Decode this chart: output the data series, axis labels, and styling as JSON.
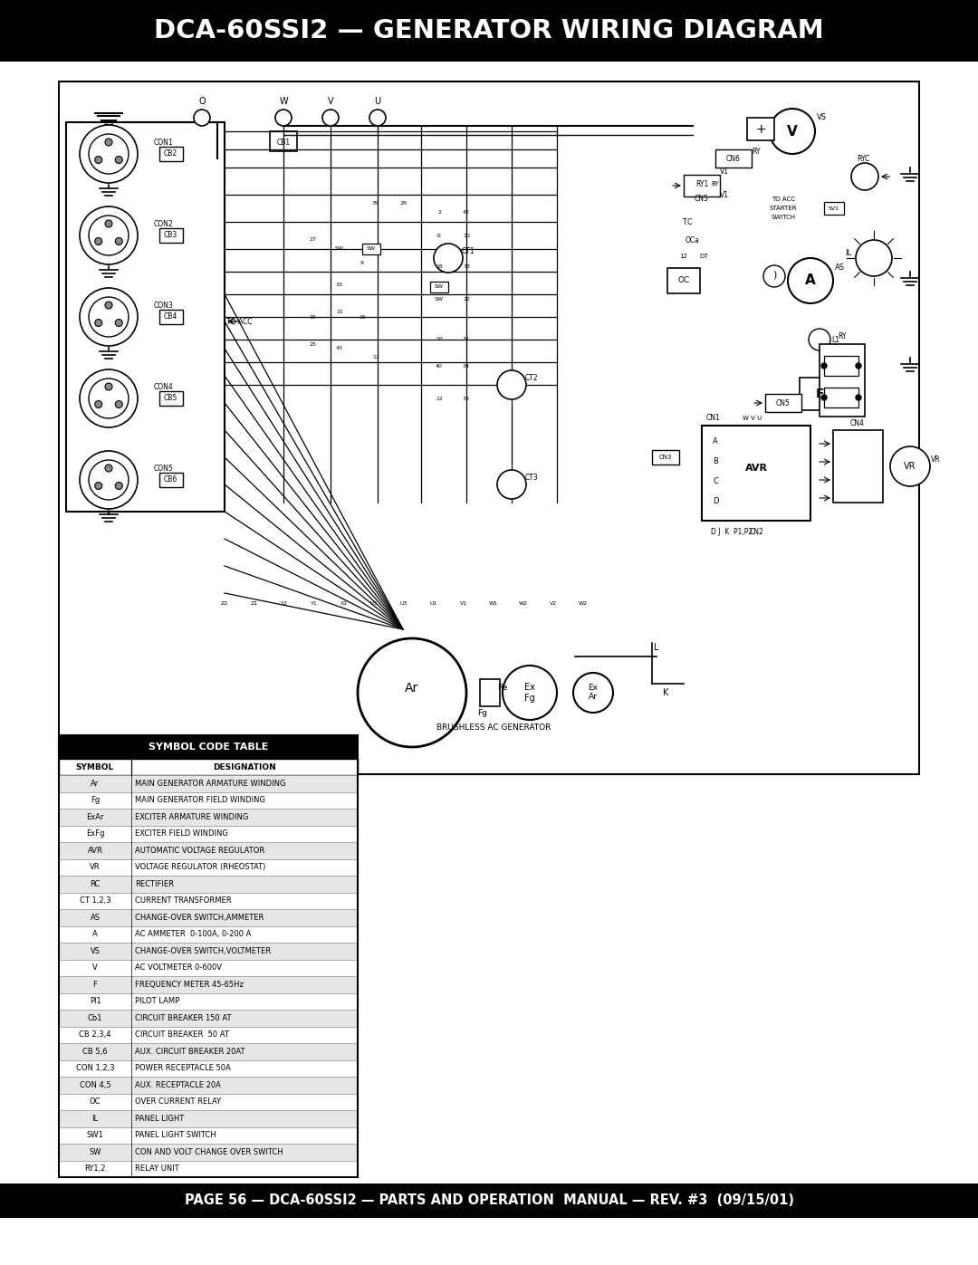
{
  "title": "DCA-60SSI2 — GENERATOR WIRING DIAGRAM",
  "footer": "PAGE 56 — DCA-60SSI2 — PARTS AND OPERATION  MANUAL — REV. #3  (09/15/01)",
  "header_bg": "#000000",
  "header_text_color": "#ffffff",
  "footer_bg": "#000000",
  "footer_text_color": "#ffffff",
  "page_bg": "#ffffff",
  "diagram_label": "BRUSHLESS AC GENERATOR",
  "table_title": "SYMBOL CODE TABLE",
  "table_header_bg": "#000000",
  "table_header_text": "#ffffff",
  "table_col1_header": "SYMBOL",
  "table_col2_header": "DESIGNATION",
  "table_rows": [
    [
      "Ar",
      "MAIN GENERATOR ARMATURE WINDING"
    ],
    [
      "Fg",
      "MAIN GENERATOR FIELD WINDING"
    ],
    [
      "ExAr",
      "EXCITER ARMATURE WINDING"
    ],
    [
      "ExFg",
      "EXCITER FIELD WINDING"
    ],
    [
      "AVR",
      "AUTOMATIC VOLTAGE REGULATOR"
    ],
    [
      "VR",
      "VOLTAGE REGULATOR (RHEOSTAT)"
    ],
    [
      "RC",
      "RECTIFIER"
    ],
    [
      "CT 1,2,3",
      "CURRENT TRANSFORMER"
    ],
    [
      "AS",
      "CHANGE-OVER SWITCH,AMMETER"
    ],
    [
      "A",
      "AC AMMETER  0-100A, 0-200 A"
    ],
    [
      "VS",
      "CHANGE-OVER SWITCH,VOLTMETER"
    ],
    [
      "V",
      "AC VOLTMETER 0-600V"
    ],
    [
      "F",
      "FREQUENCY METER 45-65Hz"
    ],
    [
      "Pl1",
      "PILOT LAMP"
    ],
    [
      "Cb1",
      "CIRCUIT BREAKER 150 AT"
    ],
    [
      "CB 2,3,4",
      "CIRCUIT BREAKER  50 AT"
    ],
    [
      "CB 5,6",
      "AUX. CIRCUIT BREAKER 20AT"
    ],
    [
      "CON 1,2,3",
      "POWER RECEPTACLE 50A"
    ],
    [
      "CON 4,5",
      "AUX. RECEPTACLE 20A"
    ],
    [
      "OC",
      "OVER CURRENT RELAY"
    ],
    [
      "IL",
      "PANEL LIGHT"
    ],
    [
      "SW1",
      "PANEL LIGHT SWITCH"
    ],
    [
      "SW",
      "CON AND VOLT CHANGE OVER SWITCH"
    ],
    [
      "RY1,2",
      "RELAY UNIT"
    ]
  ]
}
